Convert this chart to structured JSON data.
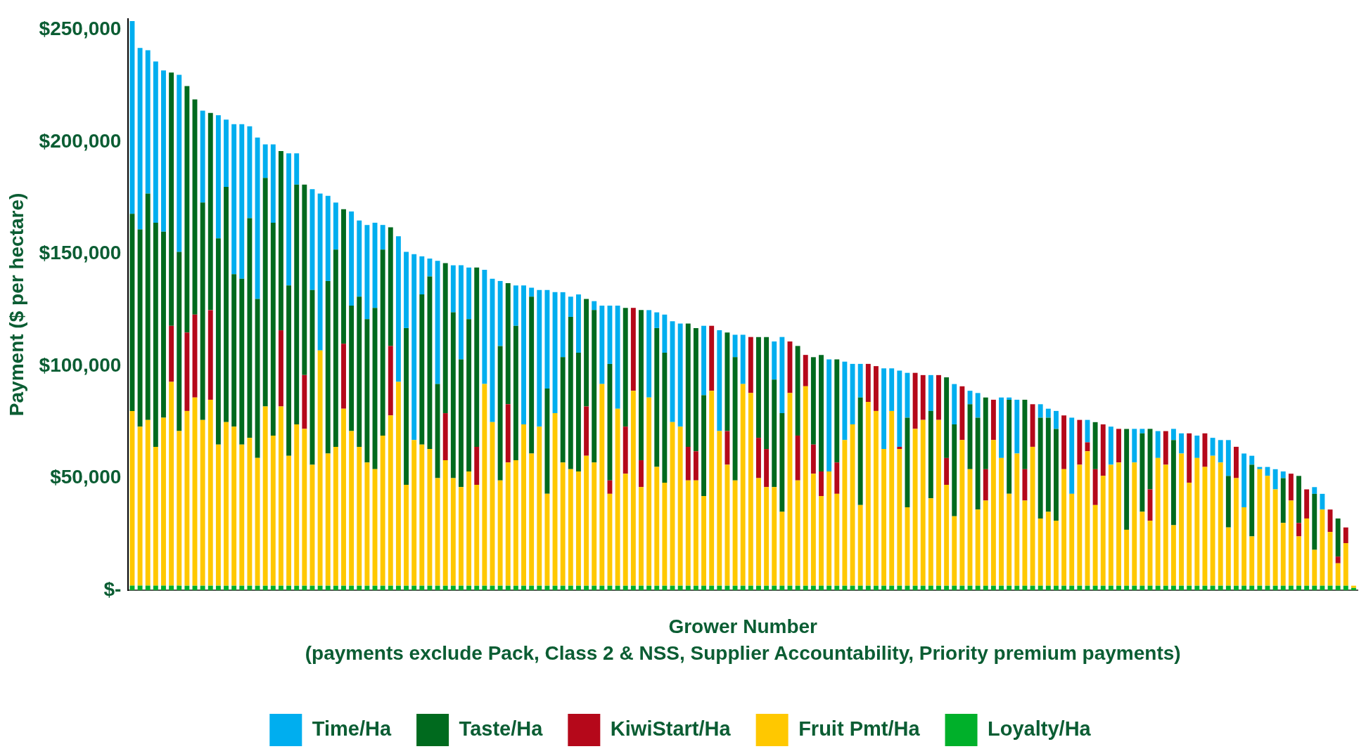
{
  "chart_data": {
    "type": "bar",
    "stacked": true,
    "ylabel": "Payment ($ per hectare)",
    "xlabel": "Grower Number",
    "annotations": [
      "(payments exclude Pack, Class 2 & NSS, Supplier Accountability, Priority premium payments)"
    ],
    "legend": "bottom",
    "grid": false,
    "ylim": [
      0,
      255000
    ],
    "yticks": [
      {
        "value": 0,
        "label": "$-"
      },
      {
        "value": 50000,
        "label": "$50,000"
      },
      {
        "value": 100000,
        "label": "$100,000"
      },
      {
        "value": 150000,
        "label": "$150,000"
      },
      {
        "value": 200000,
        "label": "$200,000"
      },
      {
        "value": 250000,
        "label": "$250,000"
      }
    ],
    "categories": [
      null,
      null,
      null,
      null,
      null,
      null,
      null,
      null,
      null,
      null,
      null,
      null,
      null,
      null,
      null,
      null,
      null,
      null,
      null,
      null,
      null,
      null,
      null,
      null,
      null,
      null,
      null,
      null,
      null,
      null,
      null,
      null,
      null,
      null,
      null,
      null,
      null,
      null,
      null,
      null,
      null,
      null,
      null,
      null,
      null,
      null,
      null,
      null,
      null,
      null,
      null,
      null,
      null,
      null,
      null,
      null,
      null,
      null,
      null,
      null,
      null,
      null,
      null,
      null,
      null,
      null,
      null,
      null,
      null,
      null,
      null,
      null,
      null,
      null,
      null,
      null,
      null,
      null,
      null,
      null,
      null,
      null,
      null,
      null,
      null,
      null,
      null,
      null,
      null,
      null,
      null,
      null,
      null,
      null,
      null,
      null,
      null,
      null,
      null,
      null,
      null,
      null,
      null,
      null,
      null,
      null,
      null,
      null,
      null,
      null,
      null,
      null,
      null,
      null,
      null,
      null,
      null,
      null,
      null,
      null,
      null,
      null,
      null,
      null,
      null,
      null,
      null,
      null,
      null,
      null,
      null,
      null,
      null,
      null,
      null,
      null,
      null,
      null,
      null,
      null,
      null,
      null,
      null,
      null,
      null,
      null,
      null,
      null,
      null,
      null,
      null,
      null,
      null,
      null,
      null,
      null,
      null
    ],
    "series": [
      {
        "name": "Loyalty/Ha",
        "color": "#00b02a",
        "values": [
          2000,
          2000,
          2000,
          2000,
          2000,
          2000,
          2000,
          2000,
          2000,
          2000,
          2000,
          2000,
          2000,
          2000,
          2000,
          2000,
          2000,
          2000,
          2000,
          2000,
          2000,
          2000,
          2000,
          2000,
          2000,
          2000,
          2000,
          2000,
          2000,
          2000,
          2000,
          2000,
          2000,
          2000,
          2000,
          2000,
          2000,
          2000,
          2000,
          2000,
          2000,
          2000,
          2000,
          2000,
          2000,
          2000,
          2000,
          2000,
          2000,
          2000,
          2000,
          2000,
          2000,
          2000,
          2000,
          2000,
          2000,
          2000,
          2000,
          2000,
          2000,
          2000,
          2000,
          2000,
          2000,
          2000,
          2000,
          2000,
          2000,
          2000,
          2000,
          2000,
          2000,
          2000,
          2000,
          2000,
          2000,
          2000,
          2000,
          2000,
          2000,
          2000,
          2000,
          2000,
          2000,
          2000,
          2000,
          2000,
          2000,
          2000,
          2000,
          2000,
          2000,
          2000,
          2000,
          2000,
          2000,
          2000,
          2000,
          2000,
          2000,
          2000,
          2000,
          2000,
          2000,
          2000,
          2000,
          2000,
          2000,
          2000,
          2000,
          2000,
          2000,
          2000,
          2000,
          2000,
          2000,
          2000,
          2000,
          2000,
          2000,
          2000,
          2000,
          2000,
          2000,
          2000,
          2000,
          2000,
          2000,
          2000,
          2000,
          2000,
          2000,
          2000,
          2000,
          2000,
          2000,
          2000,
          2000,
          2000,
          2000,
          2000,
          2000,
          2000,
          2000,
          2000,
          2000,
          2000,
          2000,
          2000,
          2000,
          2000,
          2000,
          2000,
          2000,
          2000,
          1000
        ]
      },
      {
        "name": "Fruit Pmt/Ha",
        "color": "#ffc800",
        "values": [
          78000,
          71000,
          74000,
          62000,
          75000,
          91000,
          69000,
          78000,
          84000,
          74000,
          83000,
          63000,
          73000,
          71000,
          63000,
          66000,
          57000,
          80000,
          67000,
          80000,
          58000,
          72000,
          70000,
          54000,
          105000,
          59000,
          62000,
          79000,
          69000,
          62000,
          55000,
          52000,
          67000,
          76000,
          91000,
          45000,
          65000,
          63000,
          61000,
          48000,
          56000,
          48000,
          44000,
          51000,
          45000,
          90000,
          73000,
          47000,
          55000,
          56000,
          72000,
          59000,
          71000,
          41000,
          77000,
          55000,
          52000,
          51000,
          58000,
          55000,
          90000,
          41000,
          79000,
          50000,
          87000,
          44000,
          84000,
          53000,
          46000,
          73000,
          71000,
          47000,
          47000,
          40000,
          87000,
          69000,
          54000,
          47000,
          90000,
          86000,
          48000,
          44000,
          44000,
          33000,
          86000,
          47000,
          89000,
          50000,
          40000,
          51000,
          41000,
          65000,
          72000,
          36000,
          82000,
          78000,
          61000,
          78000,
          61000,
          35000,
          70000,
          74000,
          39000,
          74000,
          45000,
          31000,
          65000,
          52000,
          34000,
          38000,
          65000,
          57000,
          41000,
          59000,
          38000,
          62000,
          30000,
          33000,
          29000,
          52000,
          41000,
          54000,
          60000,
          36000,
          49000,
          54000,
          55000,
          25000,
          55000,
          33000,
          29000,
          57000,
          54000,
          27000,
          59000,
          46000,
          57000,
          53000,
          58000,
          55000,
          26000,
          48000,
          35000,
          22000,
          52000,
          49000,
          43000,
          28000,
          38000,
          22000,
          30000,
          16000,
          34000,
          24000,
          10000,
          19000,
          1000
        ]
      },
      {
        "name": "KiwiStart/Ha",
        "color": "#b5081a",
        "values": [
          null,
          null,
          null,
          null,
          null,
          25000,
          null,
          35000,
          37000,
          null,
          40000,
          null,
          null,
          null,
          null,
          null,
          null,
          null,
          null,
          34000,
          null,
          null,
          24000,
          null,
          null,
          null,
          null,
          29000,
          null,
          null,
          null,
          null,
          null,
          31000,
          null,
          null,
          null,
          null,
          null,
          null,
          21000,
          null,
          null,
          null,
          17000,
          null,
          null,
          null,
          26000,
          null,
          null,
          null,
          null,
          null,
          null,
          null,
          null,
          null,
          22000,
          null,
          null,
          6000,
          null,
          21000,
          37000,
          12000,
          null,
          null,
          null,
          null,
          null,
          15000,
          13000,
          null,
          29000,
          null,
          15000,
          null,
          null,
          25000,
          18000,
          17000,
          null,
          null,
          23000,
          20000,
          14000,
          13000,
          11000,
          null,
          14000,
          null,
          null,
          null,
          17000,
          20000,
          null,
          null,
          1000,
          null,
          25000,
          20000,
          null,
          20000,
          12000,
          null,
          24000,
          null,
          null,
          14000,
          18000,
          null,
          null,
          null,
          14000,
          19000,
          null,
          null,
          null,
          24000,
          null,
          20000,
          4000,
          16000,
          23000,
          null,
          15000,
          null,
          null,
          null,
          14000,
          null,
          15000,
          null,
          null,
          22000,
          null,
          15000,
          null,
          null,
          null,
          14000,
          null,
          null,
          null,
          null,
          null,
          null,
          12000,
          6000,
          13000,
          null,
          null,
          10000,
          3000,
          7000,
          null
        ]
      },
      {
        "name": "Taste/Ha",
        "color": "#006a1e",
        "values": [
          88000,
          88000,
          101000,
          100000,
          83000,
          113000,
          80000,
          110000,
          96000,
          97000,
          88000,
          92000,
          105000,
          68000,
          74000,
          98000,
          71000,
          102000,
          95000,
          80000,
          76000,
          107000,
          85000,
          78000,
          null,
          77000,
          88000,
          60000,
          56000,
          67000,
          64000,
          72000,
          83000,
          53000,
          null,
          70000,
          null,
          67000,
          77000,
          42000,
          67000,
          74000,
          57000,
          68000,
          80000,
          null,
          null,
          60000,
          54000,
          60000,
          null,
          70000,
          null,
          47000,
          null,
          47000,
          68000,
          53000,
          48000,
          68000,
          null,
          52000,
          null,
          53000,
          null,
          67000,
          null,
          62000,
          58000,
          null,
          null,
          55000,
          55000,
          45000,
          null,
          null,
          44000,
          55000,
          null,
          null,
          45000,
          50000,
          48000,
          44000,
          null,
          40000,
          null,
          39000,
          52000,
          null,
          46000,
          null,
          null,
          48000,
          null,
          null,
          null,
          null,
          null,
          40000,
          null,
          null,
          39000,
          null,
          36000,
          41000,
          null,
          29000,
          41000,
          32000,
          null,
          null,
          42000,
          null,
          31000,
          null,
          45000,
          42000,
          41000,
          null,
          null,
          null,
          null,
          21000,
          null,
          null,
          null,
          45000,
          null,
          35000,
          27000,
          null,
          null,
          38000,
          null,
          null,
          null,
          null,
          null,
          null,
          23000,
          null,
          null,
          32000,
          null,
          null,
          null,
          20000,
          null,
          21000,
          null,
          25000,
          null,
          null,
          17000,
          null,
          null
        ]
      },
      {
        "name": "Time/Ha",
        "color": "#00aeef",
        "values": [
          86000,
          81000,
          64000,
          72000,
          72000,
          null,
          79000,
          null,
          null,
          41000,
          null,
          55000,
          30000,
          67000,
          69000,
          41000,
          72000,
          15000,
          35000,
          null,
          59000,
          14000,
          null,
          45000,
          70000,
          38000,
          21000,
          null,
          42000,
          34000,
          42000,
          38000,
          11000,
          null,
          65000,
          34000,
          83000,
          17000,
          8000,
          55000,
          null,
          21000,
          42000,
          23000,
          null,
          51000,
          64000,
          29000,
          null,
          18000,
          62000,
          4000,
          61000,
          44000,
          54000,
          29000,
          9000,
          26000,
          null,
          4000,
          35000,
          26000,
          46000,
          null,
          null,
          null,
          39000,
          7000,
          17000,
          45000,
          46000,
          null,
          null,
          31000,
          null,
          45000,
          null,
          10000,
          22000,
          null,
          null,
          null,
          17000,
          34000,
          null,
          null,
          null,
          null,
          null,
          50000,
          null,
          35000,
          27000,
          15000,
          null,
          null,
          36000,
          19000,
          34000,
          20000,
          null,
          null,
          16000,
          null,
          null,
          18000,
          null,
          6000,
          11000,
          null,
          null,
          27000,
          1000,
          24000,
          null,
          null,
          6000,
          4000,
          8000,
          null,
          34000,
          null,
          10000,
          null,
          null,
          17000,
          null,
          null,
          15000,
          2000,
          null,
          12000,
          null,
          5000,
          9000,
          null,
          10000,
          null,
          8000,
          10000,
          16000,
          null,
          24000,
          4000,
          1000,
          4000,
          9000,
          3000,
          null,
          null,
          null,
          3000,
          7000,
          null,
          null,
          null,
          null
        ]
      }
    ]
  }
}
